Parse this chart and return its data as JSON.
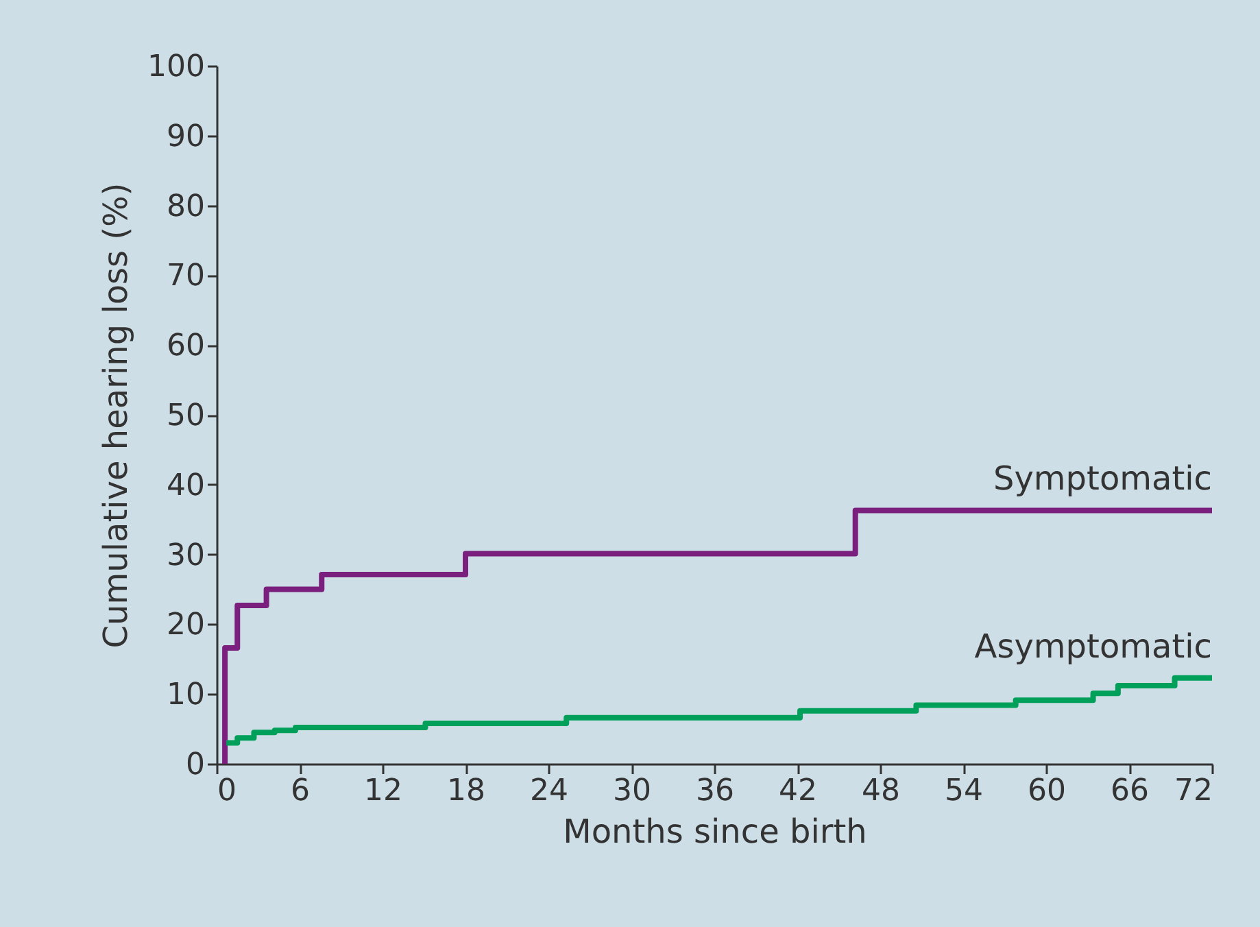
{
  "chart_data": {
    "type": "step",
    "xlabel": "Months since birth",
    "ylabel": "Cumulative hearing loss (%)",
    "xlim": [
      0,
      72
    ],
    "xticks": [
      0,
      6,
      12,
      18,
      24,
      30,
      36,
      42,
      48,
      54,
      60,
      66,
      72
    ],
    "ylim": [
      0,
      100
    ],
    "yticks": [
      0,
      10,
      20,
      30,
      40,
      50,
      60,
      70,
      80,
      90,
      100
    ],
    "grid": false,
    "legend": false,
    "line_style": "solid",
    "marker": "none",
    "series": [
      {
        "name": "Symptomatic",
        "color": "#7b1f7f",
        "x": [
          0.6,
          0.6,
          1.5,
          3.6,
          7.6,
          18.0,
          46.2,
          72
        ],
        "values": [
          0,
          16.6,
          22.7,
          25.0,
          27.1,
          30.1,
          36.3,
          36.3
        ]
      },
      {
        "name": "Asymptomatic",
        "color": "#00a05a",
        "x": [
          0.7,
          1.5,
          2.7,
          4.2,
          5.7,
          15.1,
          25.3,
          42.2,
          50.6,
          57.8,
          63.4,
          65.2,
          69.3,
          72
        ],
        "values": [
          3.0,
          3.7,
          4.5,
          4.8,
          5.2,
          5.8,
          6.6,
          7.6,
          8.4,
          9.1,
          10.1,
          11.2,
          12.3,
          12.3
        ]
      }
    ]
  }
}
